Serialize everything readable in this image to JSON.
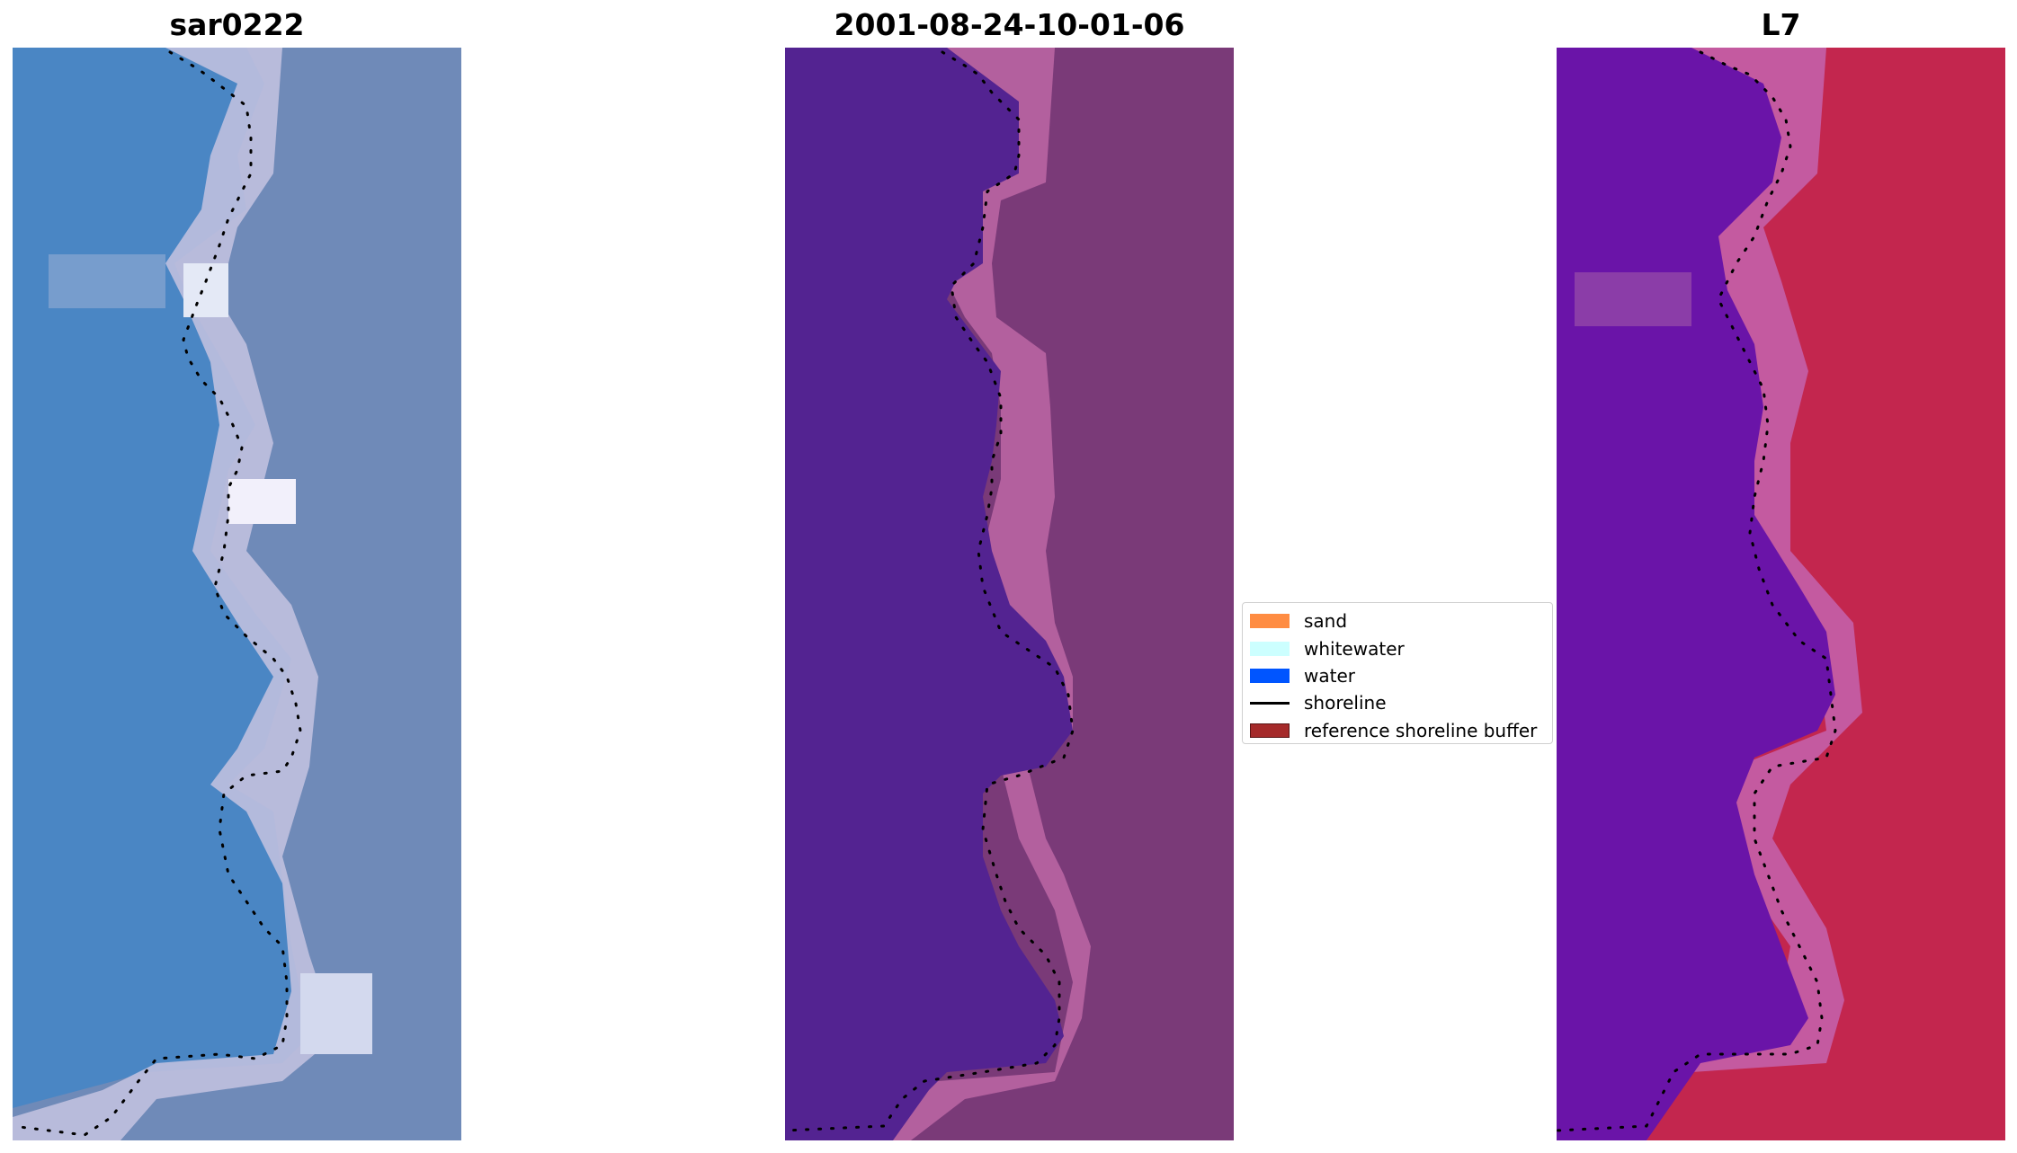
{
  "panels": [
    {
      "title": "sar0222"
    },
    {
      "title": "2001-08-24-10-01-06"
    },
    {
      "title": "L7"
    }
  ],
  "legend": {
    "items": [
      {
        "label": "sand",
        "color": "#ff8c42",
        "kind": "patch"
      },
      {
        "label": "whitewater",
        "color": "#ccffff",
        "kind": "patch"
      },
      {
        "label": "water",
        "color": "#0055ff",
        "kind": "patch"
      },
      {
        "label": "shoreline",
        "color": "#000000",
        "kind": "line"
      },
      {
        "label": "reference shoreline buffer",
        "color": "#a52a2a",
        "kind": "patch"
      }
    ]
  },
  "colors": {
    "rgb_water": "#4a86c4",
    "rgb_beach": "#c6c3e0",
    "rgb_land": "#6f8ab8",
    "classified_water": "#532391",
    "classified_land": "#7a3a78",
    "classified_beach": "#b3609e",
    "mndwi_water": "#6a14a8",
    "mndwi_land": "#c3264e",
    "mndwi_edge": "#c45aa0"
  }
}
